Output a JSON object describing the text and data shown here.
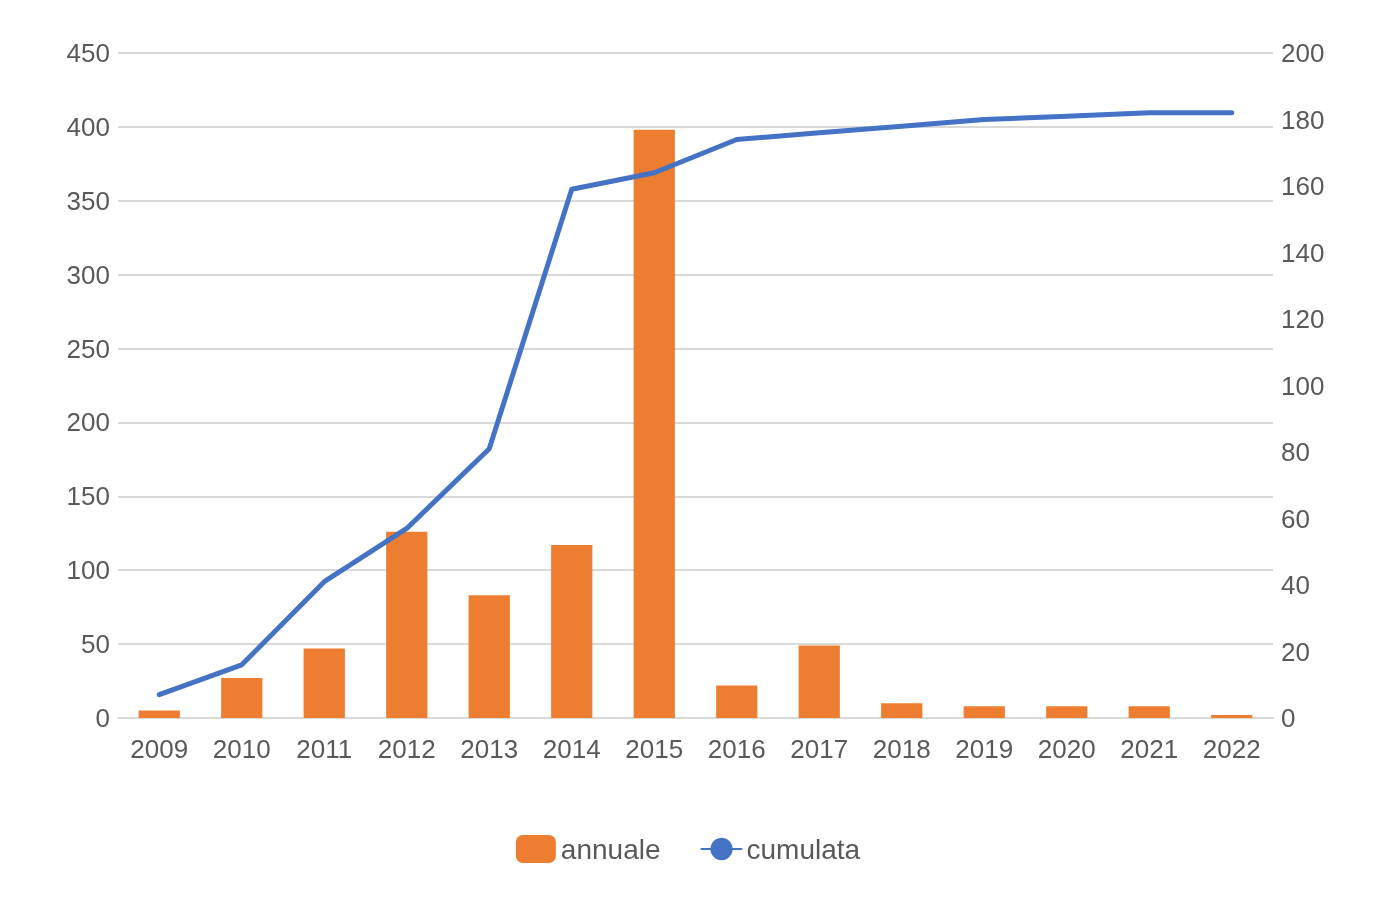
{
  "chart_data": {
    "type": "bar",
    "categories": [
      "2009",
      "2010",
      "2011",
      "2012",
      "2013",
      "2014",
      "2015",
      "2016",
      "2017",
      "2018",
      "2019",
      "2020",
      "2021",
      "2022"
    ],
    "series": [
      {
        "name": "annuale",
        "color": "#ed7d31",
        "values": [
          5,
          27,
          47,
          126,
          83,
          117,
          398,
          22,
          49,
          10,
          8,
          8,
          8,
          2
        ]
      },
      {
        "name": "cumulata",
        "type": "line",
        "axis": "y2",
        "color": "#4472c4",
        "values": [
          7,
          16,
          41,
          57,
          81,
          159,
          164,
          174,
          176,
          178,
          180,
          181,
          182,
          182
        ]
      }
    ],
    "ylim": [
      0,
      450
    ],
    "yticks": [
      0,
      50,
      100,
      150,
      200,
      250,
      300,
      350,
      400,
      450
    ],
    "y2lim": [
      0,
      200
    ],
    "y2ticks": [
      0,
      20,
      40,
      60,
      80,
      100,
      120,
      140,
      160,
      180,
      200
    ],
    "grid": "y",
    "legend": "bottom",
    "marker": "none",
    "line_style": "solid"
  }
}
